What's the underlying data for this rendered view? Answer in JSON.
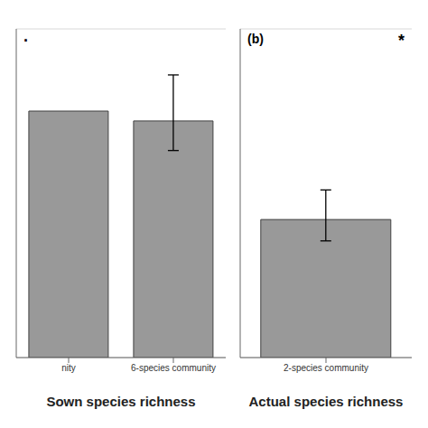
{
  "chart_data": [
    {
      "type": "bar",
      "categories": [
        "nity",
        "6-species community"
      ],
      "values": [
        0.75,
        0.72
      ],
      "error_upper": [
        null,
        0.14
      ],
      "error_lower": [
        null,
        0.09
      ],
      "x_label": "Sown species richness",
      "ylim": [
        0,
        1.0
      ],
      "yticks": [
        0.0,
        0.25,
        0.5,
        0.75,
        1.0
      ],
      "grid": true,
      "tick_labels": "x",
      "color": "#999999",
      "annotations": [
        "·"
      ]
    },
    {
      "type": "bar",
      "categories": [
        "2-species community"
      ],
      "values": [
        0.42
      ],
      "error_upper": [
        0.09
      ],
      "error_lower": [
        0.065
      ],
      "x_label": "Actual species richness",
      "ylim": [
        0,
        1.0
      ],
      "yticks": [
        0.0,
        0.25,
        0.5,
        0.75,
        1.0
      ],
      "grid": true,
      "tick_labels": "x",
      "color": "#999999",
      "annotations": [
        "(b)",
        "*"
      ]
    }
  ]
}
